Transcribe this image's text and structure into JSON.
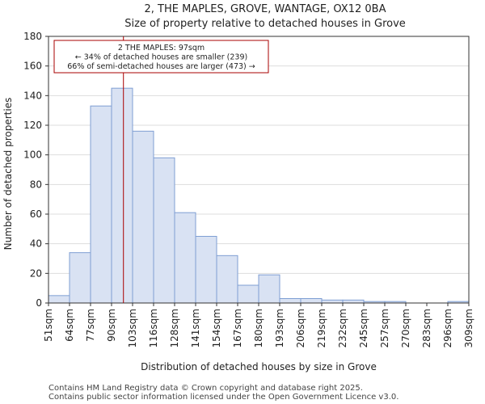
{
  "chart_data": {
    "type": "histogram",
    "title": "2, THE MAPLES, GROVE, WANTAGE, OX12 0BA",
    "subtitle": "Size of property relative to detached houses in Grove",
    "xlabel": "Distribution of detached houses by size in Grove",
    "ylabel": "Number of detached properties",
    "categories": [
      "51sqm",
      "64sqm",
      "77sqm",
      "90sqm",
      "103sqm",
      "116sqm",
      "128sqm",
      "141sqm",
      "154sqm",
      "167sqm",
      "180sqm",
      "193sqm",
      "206sqm",
      "219sqm",
      "232sqm",
      "245sqm",
      "257sqm",
      "270sqm",
      "283sqm",
      "296sqm",
      "309sqm"
    ],
    "bin_edges": [
      51,
      64,
      77,
      90,
      103,
      116,
      128,
      141,
      154,
      167,
      180,
      193,
      206,
      219,
      232,
      245,
      257,
      270,
      283,
      296,
      309
    ],
    "values": [
      5,
      34,
      133,
      145,
      116,
      98,
      61,
      45,
      32,
      12,
      19,
      3,
      3,
      2,
      2,
      1,
      1,
      0,
      0,
      1
    ],
    "ylim": [
      0,
      180
    ],
    "yticks": [
      0,
      20,
      40,
      60,
      80,
      100,
      120,
      140,
      160,
      180
    ],
    "bar_color": "#d9e2f3",
    "bar_edge_color": "#7f9fd3",
    "marker": {
      "value": 97,
      "color": "#aa0000",
      "annotation": [
        "2 THE MAPLES: 97sqm",
        "← 34% of detached houses are smaller (239)",
        "66% of semi-detached houses are larger (473) →"
      ]
    }
  },
  "footer": {
    "line1": "Contains HM Land Registry data © Crown copyright and database right 2025.",
    "line2": "Contains public sector information licensed under the Open Government Licence v3.0."
  }
}
